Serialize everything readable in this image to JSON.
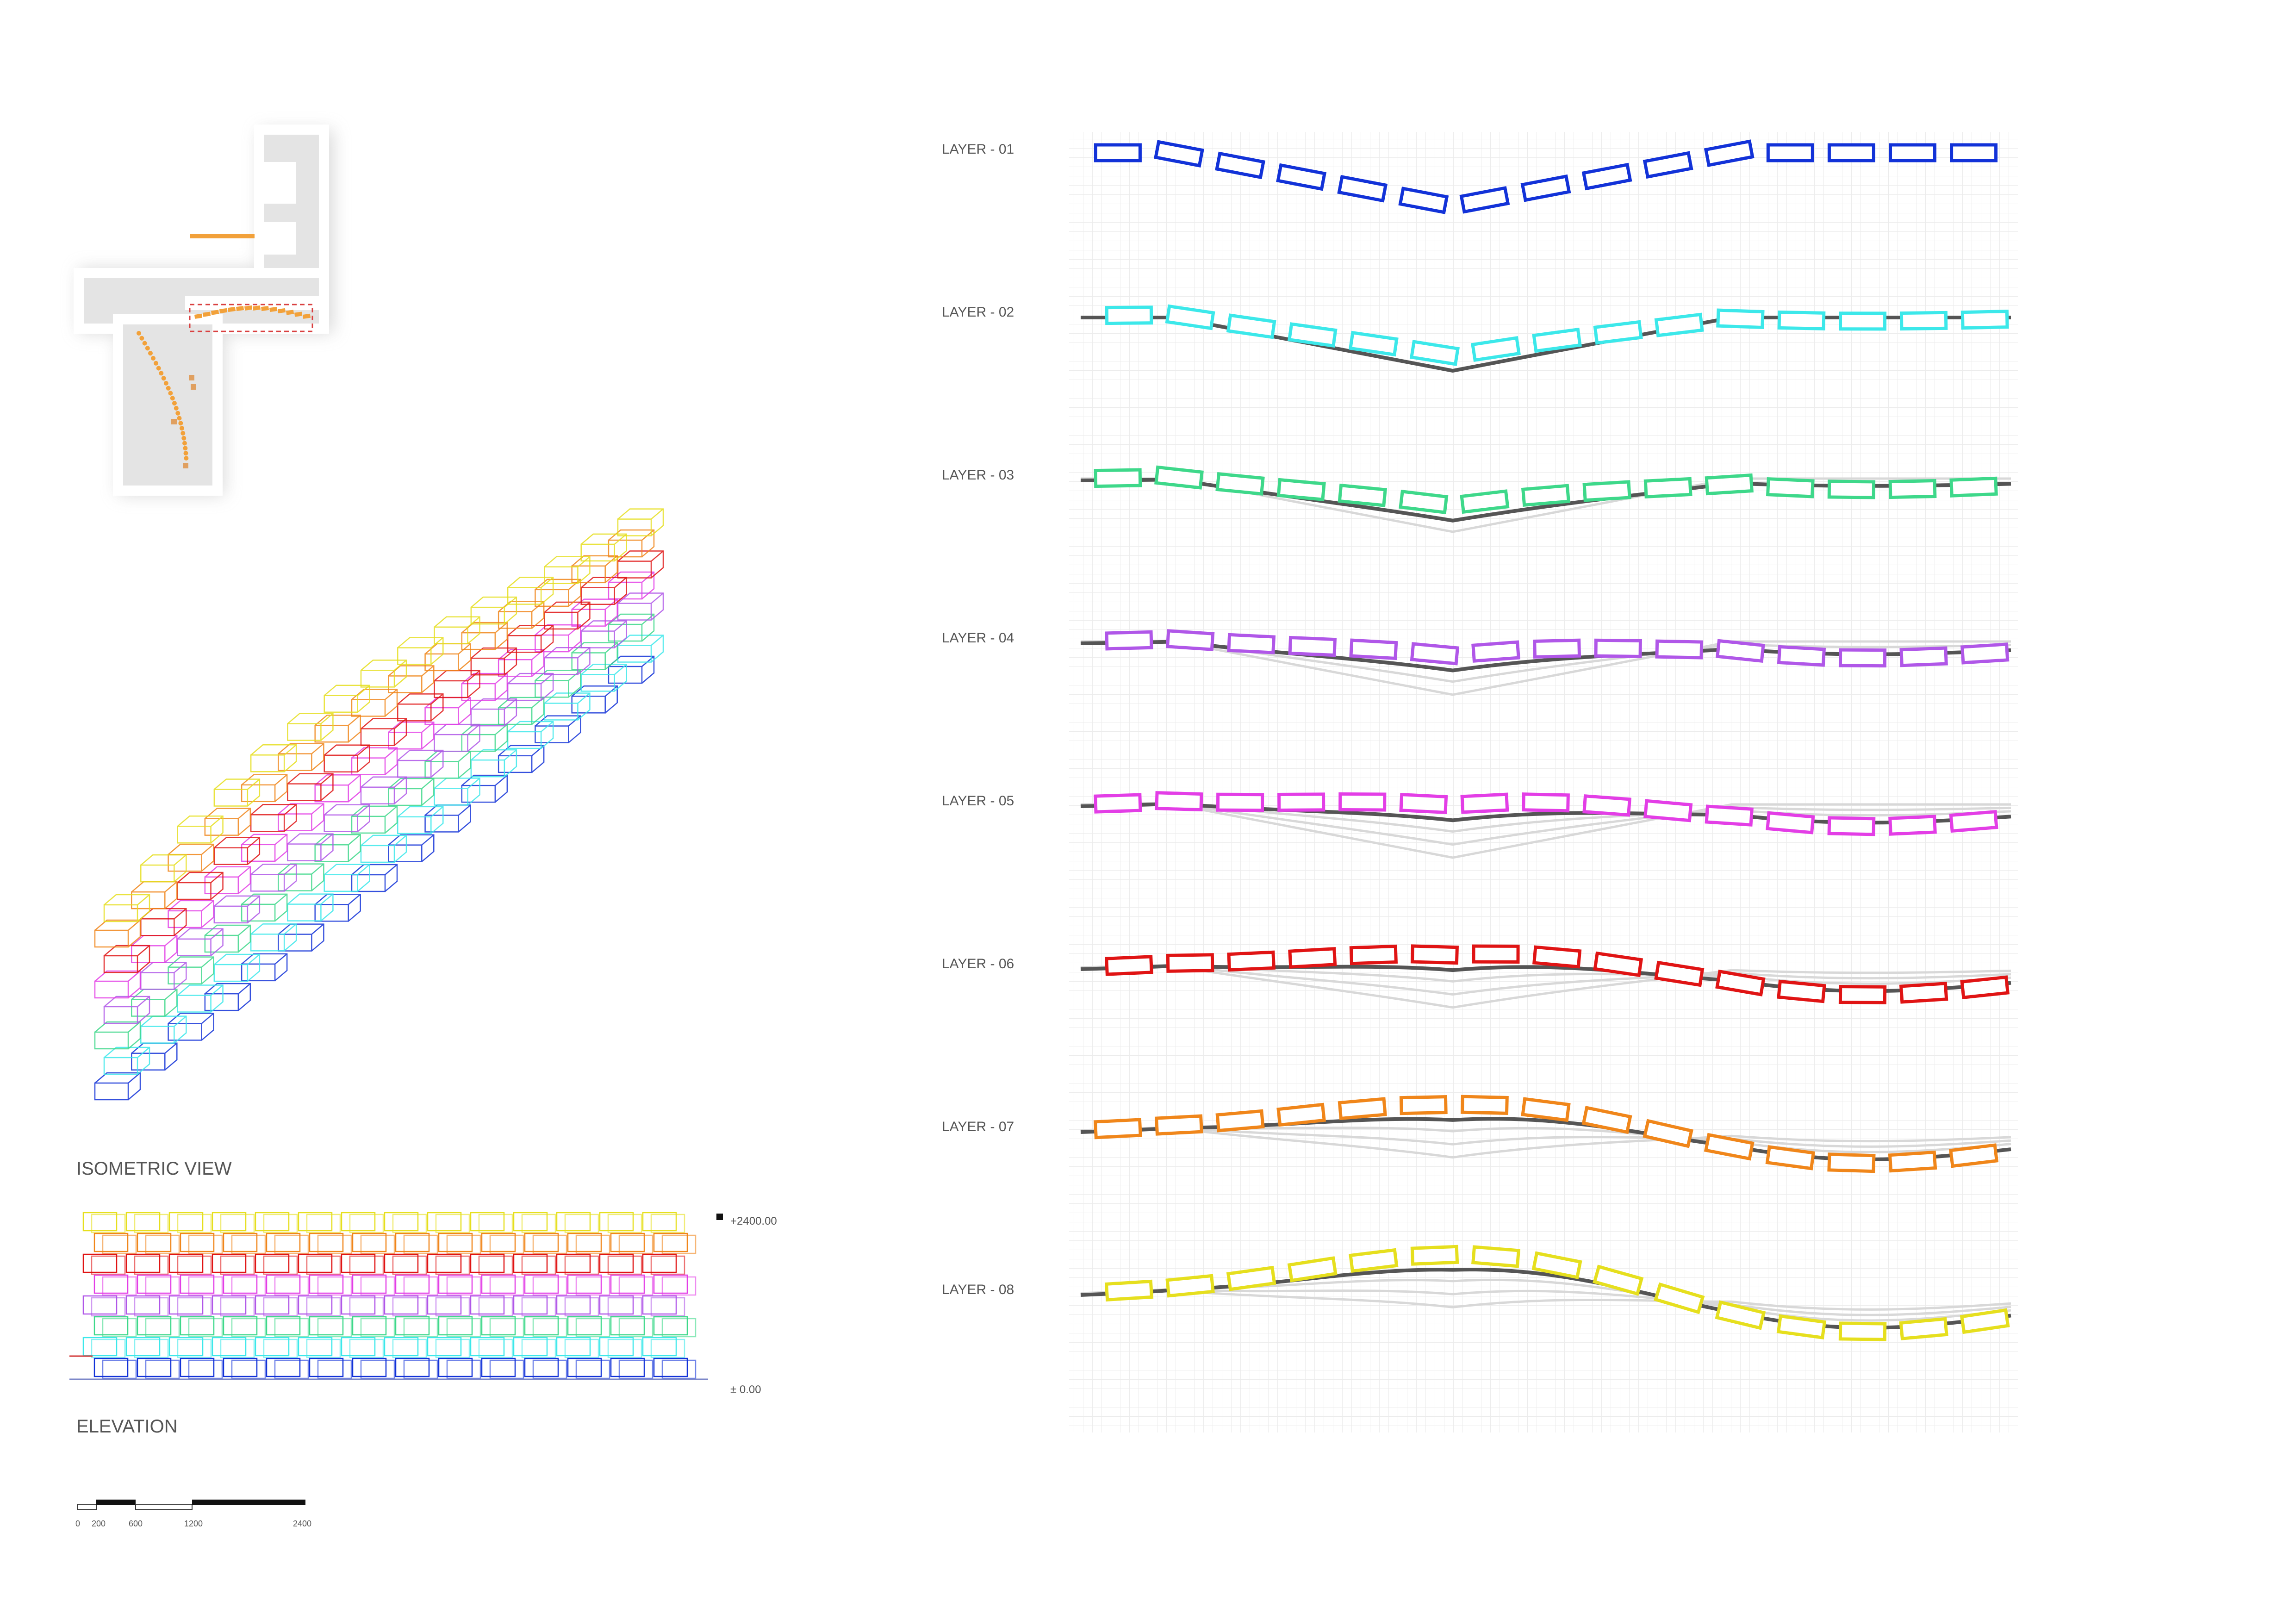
{
  "isometric": {
    "title": "ISOMETRIC VIEW"
  },
  "elevation": {
    "title": "ELEVATION",
    "top_level": "+2400.00",
    "base_level": "± 0.00"
  },
  "scale_bar": {
    "ticks": [
      "0",
      "200",
      "600",
      "1200",
      "2400"
    ]
  },
  "layers": [
    {
      "label": "LAYER - 01",
      "color": "#1232d8"
    },
    {
      "label": "LAYER - 02",
      "color": "#3ce8ea"
    },
    {
      "label": "LAYER - 03",
      "color": "#3ed88a"
    },
    {
      "label": "LAYER - 04",
      "color": "#b057e8"
    },
    {
      "label": "LAYER - 05",
      "color": "#e33ee6"
    },
    {
      "label": "LAYER - 06",
      "color": "#e01414"
    },
    {
      "label": "LAYER - 07",
      "color": "#f0861a"
    },
    {
      "label": "LAYER - 08",
      "color": "#e6df1e"
    }
  ],
  "guide_color": "#555555",
  "plan_accent_color": "#f2a13a",
  "plan_marker_color": "#d94040",
  "icons": {
    "plan": "site-plan-drawing",
    "iso": "isometric-block-drawing",
    "elev": "elevation-drawing"
  }
}
